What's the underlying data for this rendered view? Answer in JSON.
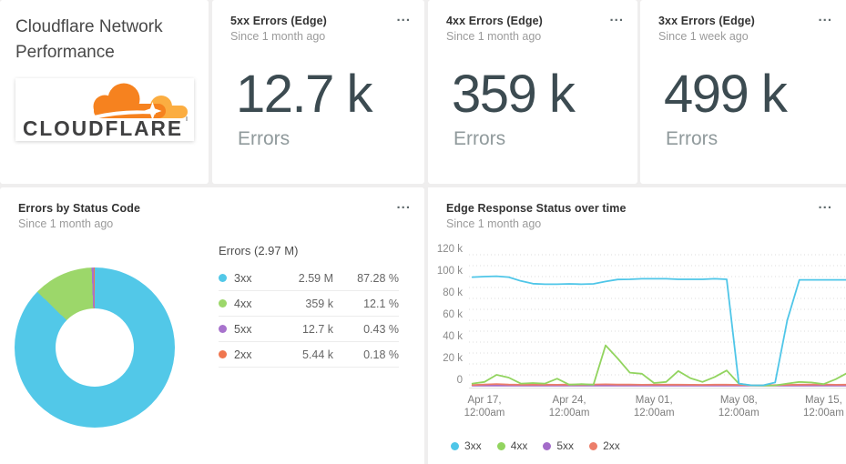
{
  "icons": {
    "ellipsis": "..."
  },
  "title_card": {
    "title": "Cloudflare Network Performance",
    "logo_wordmark": "CLOUDFLARE",
    "logo_cloud_color": "#f6821f",
    "logo_cloud_light_color": "#fbad41",
    "logo_text_color": "#404041"
  },
  "stat_cards": [
    {
      "title": "5xx Errors (Edge)",
      "subtitle": "Since 1 month ago",
      "value": "12.7 k",
      "unit": "Errors"
    },
    {
      "title": "4xx Errors (Edge)",
      "subtitle": "Since 1 month ago",
      "value": "359 k",
      "unit": "Errors"
    },
    {
      "title": "3xx Errors (Edge)",
      "subtitle": "Since 1 week ago",
      "value": "499 k",
      "unit": "Errors"
    }
  ],
  "donut_card": {
    "title": "Errors by Status Code",
    "subtitle": "Since 1 month ago"
  },
  "timeseries_card": {
    "title": "Edge Response Status over time",
    "subtitle": "Since 1 month ago"
  },
  "chart_data": [
    {
      "type": "pie",
      "donut": true,
      "title": "Errors by Status Code",
      "total_label": "Errors (2.97 M)",
      "slices": [
        {
          "label": "3xx",
          "value_display": "2.59 M",
          "percent": 87.28,
          "percent_display": "87.28 %",
          "color": "#52c8e8"
        },
        {
          "label": "4xx",
          "value_display": "359 k",
          "percent": 12.1,
          "percent_display": "12.1 %",
          "color": "#9cd76a"
        },
        {
          "label": "5xx",
          "value_display": "12.7 k",
          "percent": 0.43,
          "percent_display": "0.43 %",
          "color": "#a873cd"
        },
        {
          "label": "2xx",
          "value_display": "5.44 k",
          "percent": 0.18,
          "percent_display": "0.18 %",
          "color": "#f0764f"
        }
      ]
    },
    {
      "type": "line",
      "title": "Edge Response Status over time",
      "unit": "thousands",
      "ylim_k": [
        0,
        120
      ],
      "grid": "dotted, every 10k",
      "legend_position": "bottom",
      "y_ticks": [
        "0",
        "20 k",
        "40 k",
        "60 k",
        "80 k",
        "100 k",
        "120 k"
      ],
      "x_ticks": [
        {
          "index": 1,
          "line1": "Apr 17,",
          "line2": "12:00am"
        },
        {
          "index": 8,
          "line1": "Apr 24,",
          "line2": "12:00am"
        },
        {
          "index": 15,
          "line1": "May 01,",
          "line2": "12:00am"
        },
        {
          "index": 22,
          "line1": "May 08,",
          "line2": "12:00am"
        },
        {
          "index": 29,
          "line1": "May 15,",
          "line2": "12:00am"
        }
      ],
      "series": [
        {
          "name": "3xx",
          "color": "#4fc6e8",
          "values_k": [
            99.5,
            100,
            100.3,
            99.5,
            96,
            93.5,
            93,
            93,
            93.3,
            93,
            93.3,
            95.5,
            97.3,
            97.5,
            98,
            98,
            98,
            97.5,
            97.5,
            97.5,
            98,
            97.5,
            2,
            0.5,
            0.4,
            3,
            60,
            97,
            97,
            97,
            97,
            97
          ]
        },
        {
          "name": "4xx",
          "color": "#92d45f",
          "values_k": [
            2,
            3.5,
            10,
            7.5,
            2,
            2.5,
            2,
            6.5,
            1,
            1.5,
            1,
            37,
            25,
            12,
            11,
            2.5,
            3.5,
            13.5,
            7,
            3.5,
            8,
            14,
            2,
            0.3,
            0.2,
            0.3,
            2,
            3.5,
            3,
            1.5,
            6,
            12
          ]
        },
        {
          "name": "5xx",
          "color": "#a36bc9",
          "values_k": [
            0.1,
            0.1,
            0.1,
            0.1,
            0.1,
            0.1,
            0.1,
            0.1,
            0.1,
            0.1,
            0.1,
            0.1,
            0.1,
            0.1,
            0.1,
            0.1,
            0.1,
            0.1,
            0.1,
            0.1,
            0.1,
            0.1,
            0.1,
            0.1,
            0.1,
            0.1,
            0.1,
            0.1,
            0.1,
            0.1,
            0.1,
            0.1
          ]
        },
        {
          "name": "2xx",
          "color": "#ec7e6a",
          "values_k": [
            0.7,
            1.2,
            1.6,
            1.1,
            0.9,
            0.9,
            1,
            0.9,
            1.1,
            0.9,
            1.2,
            1.3,
            1.1,
            1.2,
            0.9,
            1,
            1,
            1,
            0.9,
            0.8,
            1,
            1,
            0.8,
            0.5,
            0.4,
            0.6,
            0.8,
            1,
            1.1,
            1.2,
            0.9,
            1
          ]
        }
      ]
    }
  ]
}
